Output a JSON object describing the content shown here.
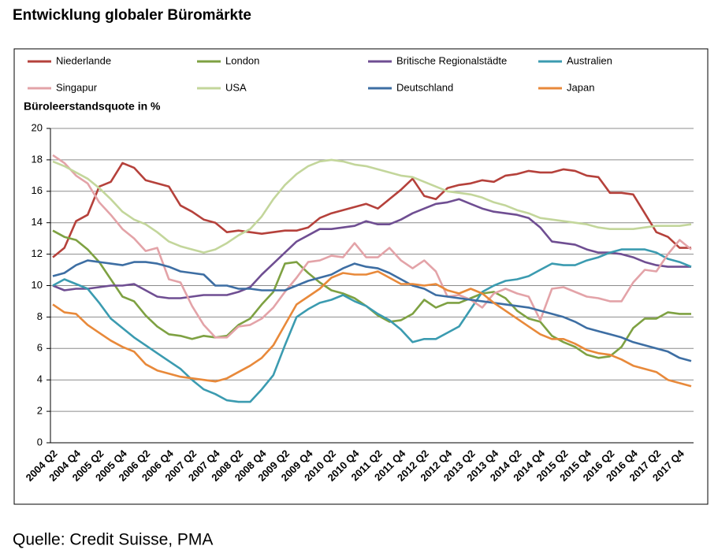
{
  "title": "Entwicklung globaler Büromärkte",
  "source": "Quelle: Credit Suisse, PMA",
  "chart_data": {
    "type": "line",
    "y_label": "Büroleerstandsquote in %",
    "categories": [
      "2004 Q2",
      null,
      "2004 Q4",
      null,
      "2005 Q2",
      null,
      "2005 Q4",
      null,
      "2006 Q2",
      null,
      "2006 Q4",
      null,
      "2007 Q2",
      null,
      "2007 Q4",
      null,
      "2008 Q2",
      null,
      "2008 Q4",
      null,
      "2009 Q2",
      null,
      "2009 Q4",
      null,
      "2010 Q2",
      null,
      "2010 Q4",
      null,
      "2011 Q2",
      null,
      "2011 Q4",
      null,
      "2012 Q2",
      null,
      "2012 Q4",
      null,
      "2013 Q2",
      null,
      "2013 Q4",
      null,
      "2014 Q2",
      null,
      "2014 Q4",
      null,
      "2015 Q2",
      null,
      "2015 Q4",
      null,
      "2016 Q2",
      null,
      "2016 Q4",
      null,
      "2017 Q2",
      null,
      "2017 Q4",
      null
    ],
    "ylim": [
      0,
      20
    ],
    "yticks": [
      0,
      2,
      4,
      6,
      8,
      10,
      12,
      14,
      16,
      18,
      20
    ],
    "grid": true,
    "series": [
      {
        "name": "Niederlande",
        "color": "#b5413b",
        "values": [
          11.8,
          12.4,
          14.1,
          14.5,
          16.3,
          16.6,
          17.8,
          17.5,
          16.7,
          16.5,
          16.3,
          15.1,
          14.7,
          14.2,
          14.0,
          13.4,
          13.5,
          13.4,
          13.3,
          13.4,
          13.5,
          13.5,
          13.7,
          14.3,
          14.6,
          14.8,
          15.0,
          15.2,
          14.9,
          15.5,
          16.1,
          16.8,
          15.7,
          15.5,
          16.2,
          16.4,
          16.5,
          16.7,
          16.6,
          17.0,
          17.1,
          17.3,
          17.2,
          17.2,
          17.4,
          17.3,
          17.0,
          16.9,
          15.9,
          15.9,
          15.8,
          14.6,
          13.4,
          13.1,
          12.4,
          12.4
        ]
      },
      {
        "name": "London",
        "color": "#7ea142",
        "values": [
          13.5,
          13.1,
          12.9,
          12.3,
          11.5,
          10.4,
          9.3,
          9.0,
          8.1,
          7.4,
          6.9,
          6.8,
          6.6,
          6.8,
          6.7,
          6.8,
          7.5,
          7.9,
          8.8,
          9.6,
          11.4,
          11.5,
          10.8,
          10.2,
          9.7,
          9.5,
          9.2,
          8.7,
          8.1,
          7.7,
          7.8,
          8.2,
          9.1,
          8.6,
          8.9,
          8.9,
          9.2,
          9.5,
          9.6,
          9.2,
          8.4,
          7.9,
          7.7,
          6.8,
          6.4,
          6.1,
          5.6,
          5.4,
          5.5,
          6.1,
          7.3,
          7.9,
          7.9,
          8.3,
          8.2,
          8.2
        ]
      },
      {
        "name": "Britische Regionalstädte",
        "color": "#6f4e92",
        "values": [
          10.0,
          9.7,
          9.8,
          9.8,
          9.9,
          10.0,
          10.0,
          10.1,
          9.7,
          9.3,
          9.2,
          9.2,
          9.3,
          9.4,
          9.4,
          9.4,
          9.6,
          9.9,
          10.7,
          11.4,
          12.1,
          12.8,
          13.2,
          13.6,
          13.6,
          13.7,
          13.8,
          14.1,
          13.9,
          13.9,
          14.2,
          14.6,
          14.9,
          15.2,
          15.3,
          15.5,
          15.2,
          14.9,
          14.7,
          14.6,
          14.5,
          14.3,
          13.7,
          12.8,
          12.7,
          12.6,
          12.3,
          12.1,
          12.1,
          12.0,
          11.8,
          11.5,
          11.3,
          11.2,
          11.2,
          11.2
        ]
      },
      {
        "name": "Australien",
        "color": "#3b9bb0",
        "values": [
          10.0,
          10.4,
          10.1,
          9.8,
          8.9,
          7.9,
          7.3,
          6.7,
          6.2,
          5.7,
          5.2,
          4.7,
          4.0,
          3.4,
          3.1,
          2.7,
          2.6,
          2.6,
          3.4,
          4.3,
          6.2,
          8.0,
          8.5,
          8.9,
          9.1,
          9.4,
          9.0,
          8.7,
          8.2,
          7.8,
          7.2,
          6.4,
          6.6,
          6.6,
          7.0,
          7.4,
          8.5,
          9.6,
          10.0,
          10.3,
          10.4,
          10.6,
          11.0,
          11.4,
          11.3,
          11.3,
          11.6,
          11.8,
          12.1,
          12.3,
          12.3,
          12.3,
          12.1,
          11.7,
          11.5,
          11.2
        ]
      },
      {
        "name": "Singapur",
        "color": "#e3a3a8",
        "values": [
          18.3,
          17.8,
          17.0,
          16.5,
          15.3,
          14.5,
          13.6,
          13.0,
          12.2,
          12.4,
          10.4,
          10.2,
          8.7,
          7.5,
          6.7,
          6.7,
          7.4,
          7.5,
          7.9,
          8.6,
          9.6,
          10.5,
          11.5,
          11.6,
          11.9,
          11.8,
          12.7,
          11.8,
          11.8,
          12.4,
          11.6,
          11.1,
          11.6,
          10.9,
          9.3,
          9.4,
          9.1,
          8.6,
          9.5,
          9.8,
          9.5,
          9.3,
          7.8,
          9.8,
          9.9,
          9.6,
          9.3,
          9.2,
          9.0,
          9.0,
          10.2,
          11.0,
          10.9,
          12.0,
          12.9,
          12.3
        ]
      },
      {
        "name": "USA",
        "color": "#c3d69b",
        "values": [
          17.9,
          17.6,
          17.2,
          16.8,
          16.2,
          15.5,
          14.7,
          14.2,
          13.9,
          13.4,
          12.8,
          12.5,
          12.3,
          12.1,
          12.3,
          12.7,
          13.2,
          13.6,
          14.4,
          15.5,
          16.4,
          17.1,
          17.6,
          17.9,
          18.0,
          17.9,
          17.7,
          17.6,
          17.4,
          17.2,
          17.0,
          16.9,
          16.6,
          16.3,
          16.0,
          15.9,
          15.8,
          15.6,
          15.3,
          15.1,
          14.8,
          14.6,
          14.3,
          14.2,
          14.1,
          14.0,
          13.9,
          13.7,
          13.6,
          13.6,
          13.6,
          13.7,
          13.8,
          13.8,
          13.8,
          13.9
        ]
      },
      {
        "name": "Deutschland",
        "color": "#3d6ea3",
        "values": [
          10.6,
          10.8,
          11.3,
          11.6,
          11.5,
          11.4,
          11.3,
          11.5,
          11.5,
          11.4,
          11.2,
          10.9,
          10.8,
          10.7,
          10.0,
          10.0,
          9.8,
          9.8,
          9.7,
          9.7,
          9.7,
          10.0,
          10.3,
          10.5,
          10.7,
          11.1,
          11.4,
          11.2,
          11.1,
          10.8,
          10.4,
          10.0,
          9.8,
          9.4,
          9.3,
          9.2,
          9.1,
          9.0,
          8.9,
          8.8,
          8.7,
          8.6,
          8.4,
          8.2,
          8.0,
          7.7,
          7.3,
          7.1,
          6.9,
          6.7,
          6.4,
          6.2,
          6.0,
          5.8,
          5.4,
          5.2
        ]
      },
      {
        "name": "Japan",
        "color": "#e8893a",
        "values": [
          8.8,
          8.3,
          8.2,
          7.5,
          7.0,
          6.5,
          6.1,
          5.8,
          5.0,
          4.6,
          4.4,
          4.2,
          4.1,
          4.0,
          3.9,
          4.1,
          4.5,
          4.9,
          5.4,
          6.2,
          7.5,
          8.8,
          9.3,
          9.8,
          10.5,
          10.8,
          10.7,
          10.7,
          10.9,
          10.5,
          10.1,
          10.1,
          10.0,
          10.1,
          9.7,
          9.5,
          9.8,
          9.5,
          8.9,
          8.4,
          7.9,
          7.4,
          6.9,
          6.6,
          6.6,
          6.3,
          5.9,
          5.7,
          5.6,
          5.3,
          4.9,
          4.7,
          4.5,
          4.0,
          3.8,
          3.6
        ]
      }
    ]
  }
}
